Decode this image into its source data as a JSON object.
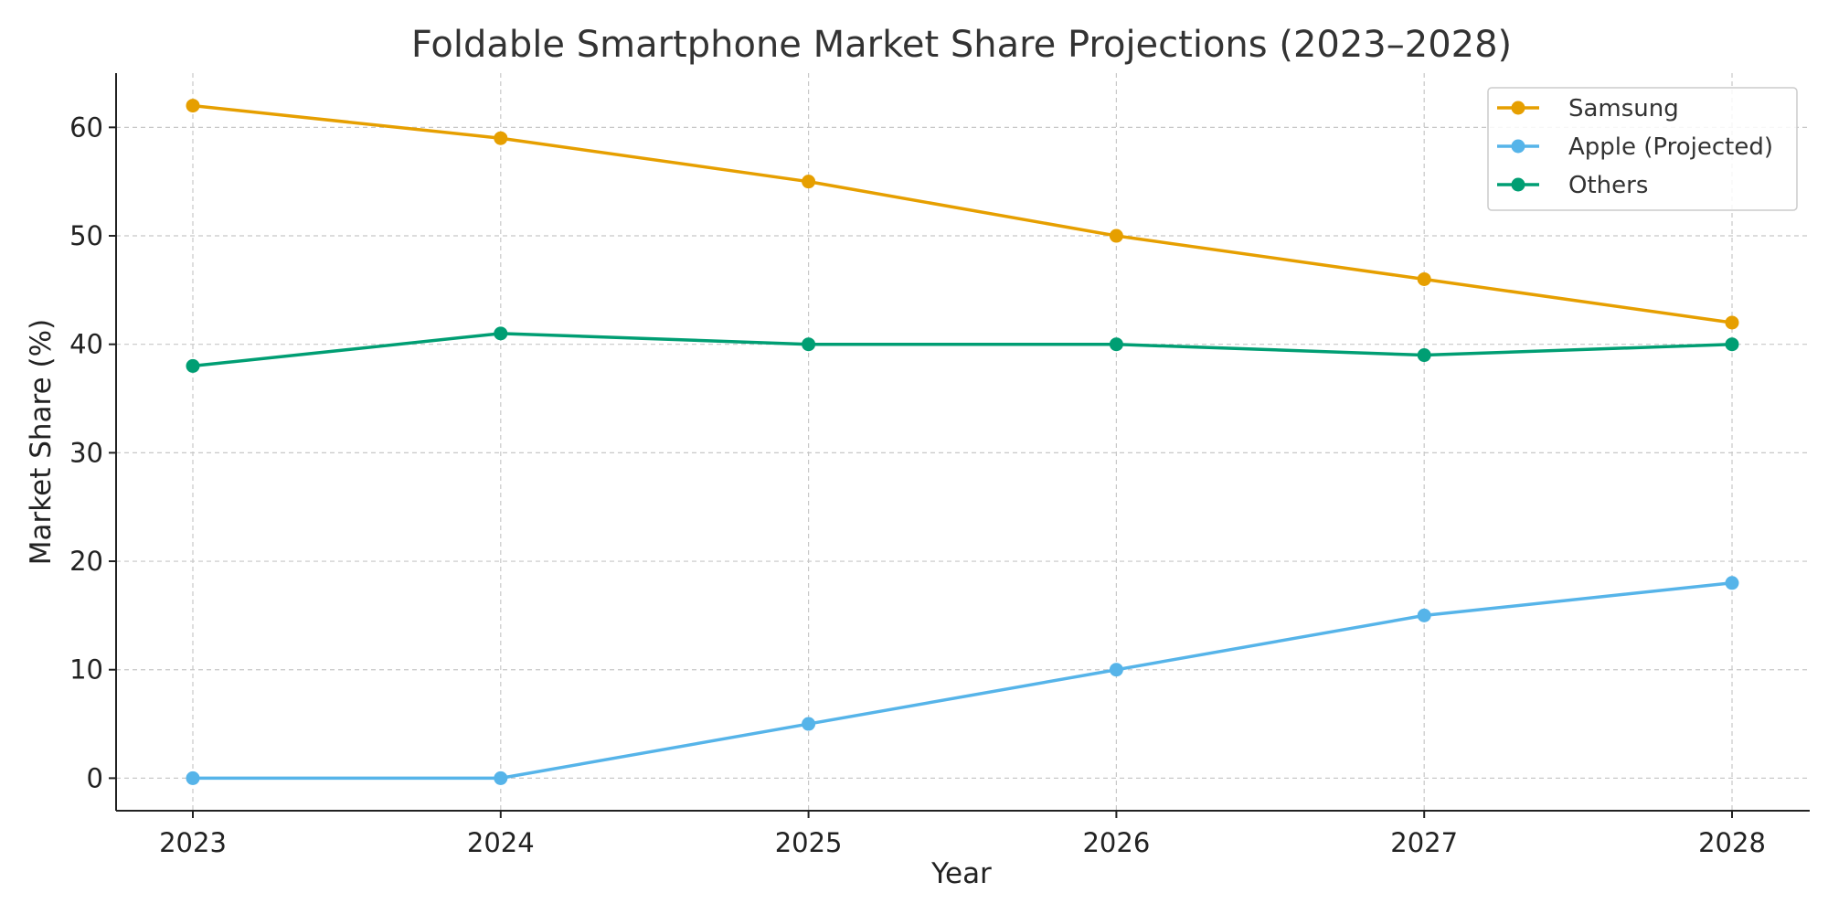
{
  "chart_data": {
    "type": "line",
    "title": "Foldable Smartphone Market Share Projections (2023–2028)",
    "xlabel": "Year",
    "ylabel": "Market Share (%)",
    "x": [
      "2023",
      "2024",
      "2025",
      "2026",
      "2027",
      "2028"
    ],
    "yticks": [
      0,
      10,
      20,
      30,
      40,
      50,
      60
    ],
    "ylim": [
      -3,
      65
    ],
    "grid": true,
    "legend_position": "top-right",
    "series": [
      {
        "name": "Samsung",
        "color": "#E69F00",
        "values": [
          62,
          59,
          55,
          50,
          46,
          42
        ]
      },
      {
        "name": "Apple (Projected)",
        "color": "#56B4E9",
        "values": [
          0,
          0,
          5,
          10,
          15,
          18
        ]
      },
      {
        "name": "Others",
        "color": "#009E73",
        "values": [
          38,
          41,
          40,
          40,
          39,
          40
        ]
      }
    ]
  }
}
